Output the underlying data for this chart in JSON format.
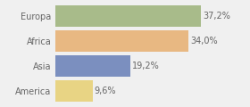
{
  "categories": [
    "Europa",
    "Africa",
    "Asia",
    "America"
  ],
  "values": [
    37.2,
    34.0,
    19.2,
    9.6
  ],
  "labels": [
    "37,2%",
    "34,0%",
    "19,2%",
    "9,6%"
  ],
  "colors": [
    "#a8bb8a",
    "#e8b882",
    "#7b8fbf",
    "#e8d484"
  ],
  "xlim": [
    0,
    42
  ],
  "background_color": "#f0f0f0",
  "bar_height": 0.85,
  "label_fontsize": 7.0,
  "tick_fontsize": 7.0,
  "label_color": "#666666",
  "tick_color": "#666666"
}
